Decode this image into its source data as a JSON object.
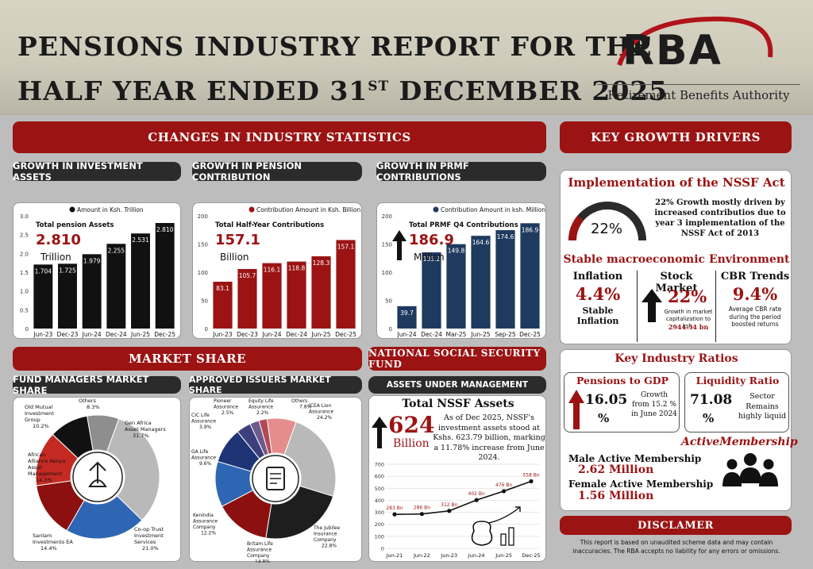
{
  "header": {
    "title_line1": "PENSIONS INDUSTRY REPORT FOR THE",
    "title_line2_pre": "HALF YEAR ENDED 31",
    "title_sup": "ST",
    "title_line2_post": " DECEMBER 2025",
    "logo": "RBA",
    "logo_sub": "Retirement Benefits Authority"
  },
  "sections": {
    "changes": "CHANGES IN INDUSTRY STATISTICS",
    "drivers": "KEY GROWTH DRIVERS",
    "market_share": "MARKET SHARE",
    "nssf": "NATIONAL SOCIAL SECURITY FUND",
    "aum": "ASSETS UNDER MANAGEMENT",
    "fund_managers": "FUND MANAGERS MARKET SHARE",
    "approved_issuers": "APPROVED ISSUERS MARKET SHARE",
    "growth_assets": "GROWTH IN INVESTMENT ASSETS",
    "growth_contrib": "GROWTH IN PENSION CONTRIBUTION",
    "growth_prmf": "GROWTH IN PRMF CONTRIBUTIONS"
  },
  "chart_data": [
    {
      "type": "bar",
      "legend": "Amount in Ksh. Trillion",
      "categories": [
        "Jun-23",
        "Dec-23",
        "Jun-24",
        "Dec-24",
        "Jun-25",
        "Dec-25"
      ],
      "values": [
        1.704,
        1.725,
        1.979,
        2.255,
        2.531,
        2.81
      ],
      "value_labels": [
        "1.704",
        "1.725",
        "1.979",
        "2.255",
        "2.531",
        "2.810"
      ],
      "ylim": [
        0,
        3.0
      ],
      "yticks": [
        "0",
        "0.5",
        "1.0",
        "1.5",
        "2.0",
        "2.5",
        "3.0"
      ],
      "color": "#111111",
      "callout_title": "Total pension Assets",
      "callout_value": "2.810",
      "callout_unit": "Trillion"
    },
    {
      "type": "bar",
      "legend": "Contribution Amount in Ksh. Billion",
      "categories": [
        "Jun-23",
        "Dec-23",
        "Jun-24",
        "Dec-24",
        "Jun-25",
        "Dec-25"
      ],
      "values": [
        83.1,
        105.7,
        116.1,
        118.8,
        128.3,
        157.1
      ],
      "value_labels": [
        "83.1",
        "105.7",
        "116.1",
        "118.8",
        "128.3",
        "157.1"
      ],
      "ylim": [
        0,
        200
      ],
      "yticks": [
        "0",
        "50",
        "100",
        "150",
        "200"
      ],
      "color": "#9b1313",
      "callout_title": "Total Half-Year Contributions",
      "callout_value": "157.1",
      "callout_unit": "Billion"
    },
    {
      "type": "bar",
      "legend": "Contribution Amount in ksh. Million",
      "categories": [
        "Jun-24",
        "Dec-24",
        "Mar-25",
        "Jun-25",
        "Sep-25",
        "Dec-25"
      ],
      "values": [
        39.7,
        135.2,
        149.8,
        164.6,
        174.6,
        186.9
      ],
      "value_labels": [
        "39.7",
        "135.2",
        "149.8",
        "164.6",
        "174.6",
        "186.9"
      ],
      "ylim": [
        0,
        200
      ],
      "yticks": [
        "0",
        "50",
        "100",
        "150",
        "200"
      ],
      "color": "#1f3a5f",
      "callout_title": "Total PRMF Q4 Contributions",
      "callout_value": "186.9",
      "callout_unit": "Million"
    },
    {
      "type": "pie",
      "slices": [
        {
          "label": "Gen Africa Asset Managers",
          "pct": 31.7,
          "pct_label": "31.7%",
          "color": "#b9b9b9"
        },
        {
          "label": "Co-op Trust Investment Services",
          "pct": 21.0,
          "pct_label": "21.0%",
          "color": "#2f66b3"
        },
        {
          "label": "Sanlam Investments EA",
          "pct": 14.4,
          "pct_label": "14.4%",
          "color": "#8c1010"
        },
        {
          "label": "African Alliance Kenya Asset Management",
          "pct": 14.3,
          "pct_label": "14.3%",
          "color": "#c42a22"
        },
        {
          "label": "Old Mutual Investment Group",
          "pct": 10.2,
          "pct_label": "10.2%",
          "color": "#111111"
        },
        {
          "label": "Others",
          "pct": 8.3,
          "pct_label": "8.3%",
          "color": "#8e8e8e"
        }
      ]
    },
    {
      "type": "pie",
      "slices": [
        {
          "label": "ICEA Lion Assurance",
          "pct": 24.2,
          "pct_label": "24.2%",
          "color": "#b9b9b9"
        },
        {
          "label": "The Jubilee Insurance Company",
          "pct": 22.8,
          "pct_label": "22.8%",
          "color": "#1e1e1e"
        },
        {
          "label": "Britam Life Assurance Company",
          "pct": 14.8,
          "pct_label": "14.8%",
          "color": "#8c1010"
        },
        {
          "label": "Kenindia Assurance Company",
          "pct": 12.2,
          "pct_label": "12.2%",
          "color": "#2f66b3"
        },
        {
          "label": "GA Life Assurance",
          "pct": 9.6,
          "pct_label": "9.6%",
          "color": "#1f3476"
        },
        {
          "label": "CIC Life Assurance",
          "pct": 3.9,
          "pct_label": "3.9%",
          "color": "#3d3f7c"
        },
        {
          "label": "Pioneer Assurance",
          "pct": 2.5,
          "pct_label": "2.5%",
          "color": "#6d5a8e"
        },
        {
          "label": "Equity Life Assurance",
          "pct": 2.2,
          "pct_label": "2.2%",
          "color": "#b14a55"
        },
        {
          "label": "Others",
          "pct": 7.8,
          "pct_label": "7.8%",
          "color": "#e58c8c"
        }
      ]
    },
    {
      "type": "line",
      "categories": [
        "Jun-21",
        "Jun-22",
        "Jun-23",
        "Jun-24",
        "Jun-25",
        "Dec-25"
      ],
      "values": [
        283,
        286,
        312,
        402,
        476,
        558
      ],
      "value_labels": [
        "283 Bn",
        "286 Bn",
        "312 Bn",
        "402 Bn",
        "476 Bn",
        "558 Bn"
      ],
      "ylim": [
        0,
        700
      ],
      "yticks": [
        "0",
        "100",
        "200",
        "300",
        "400",
        "500",
        "600",
        "700"
      ],
      "color": "#111111"
    }
  ],
  "nssf": {
    "title": "Total NSSF Assets",
    "value": "624",
    "unit": "Billion",
    "desc": "As of Dec 2025, NSSF's investment assets stood at Kshs. 623.79 billion, marking a 11.78% increase from June 2024."
  },
  "drivers": {
    "nssf_act_title": "Implementation of the NSSF Act",
    "gauge_value": "22%",
    "gauge_pct": 22,
    "nssf_act_desc": "22% Growth mostly driven by increased contributios due to year 3 implementation of the NSSF Act of 2013",
    "macro_title": "Stable macroeconomic Environment",
    "inflation_label": "Inflation",
    "inflation_value": "4.4%",
    "inflation_desc": "Stable Inflation",
    "stock_label": "Stock Market",
    "stock_value": "22%",
    "stock_desc": "Growth in market capitalization to ksh.",
    "stock_desc2": "2944.34 bn",
    "cbr_label": "CBR Trends",
    "cbr_value": "9.4%",
    "cbr_desc": "Average CBR rate during the period boosted returns"
  },
  "ratios": {
    "title": "Key Industry Ratios",
    "gdp_title": "Pensions to  GDP",
    "gdp_value": "16.05",
    "gdp_pct": "%",
    "gdp_desc": "Growth from 15.2 % in June 2024",
    "liq_title": "Liquidity Ratio",
    "liq_value": "71.08",
    "liq_pct": "%",
    "liq_desc": "Sector Remains highly liquid",
    "membership_title": "ActiveMembership",
    "male_label": "Male Active Membership",
    "male_value": "2.62 Million",
    "female_label": "Female Active Membership",
    "female_value": "1.56 Million"
  },
  "disclaimer": {
    "title": "DISCLAMER",
    "text": "This report is based on unaudited scheme data and may contain inaccuracies. The RBA accepts no liability for any errors or omissions."
  }
}
